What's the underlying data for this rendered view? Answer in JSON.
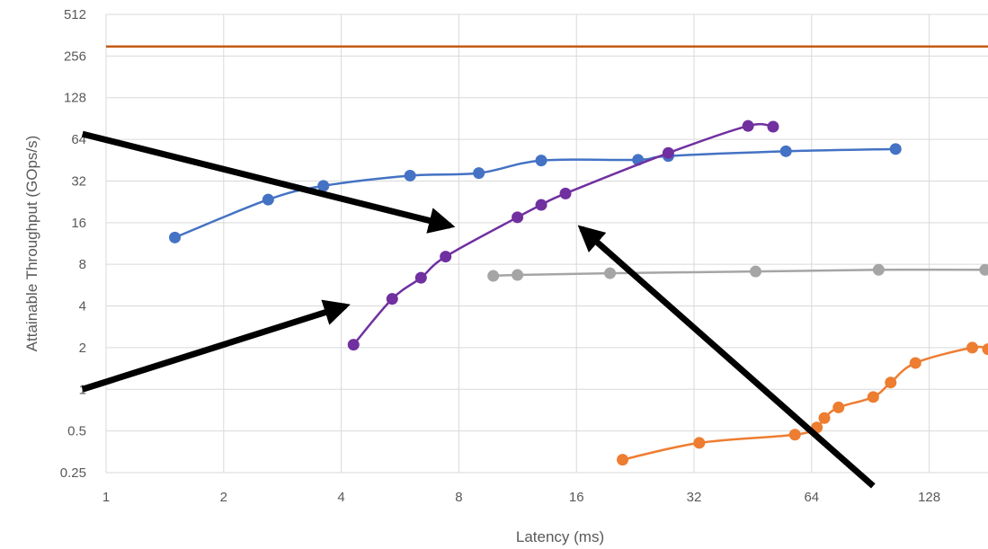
{
  "chart_data": {
    "type": "line",
    "xlabel": "Latency (ms)",
    "ylabel": "Attainable Throughput (GOps/s)",
    "xscale": "log2",
    "yscale": "log2",
    "xlim": [
      1,
      181
    ],
    "ylim": [
      0.25,
      512
    ],
    "xticks": [
      1,
      2,
      4,
      8,
      16,
      32,
      64,
      128
    ],
    "xtick_labels": [
      "1",
      "2",
      "4",
      "8",
      "16",
      "32",
      "64",
      "128"
    ],
    "yticks": [
      0.25,
      0.5,
      1,
      2,
      4,
      8,
      16,
      32,
      64,
      128,
      256,
      512
    ],
    "ytick_labels": [
      "0.25",
      "0.5",
      "1",
      "2",
      "4",
      "8",
      "16",
      "32",
      "64",
      "128",
      "256",
      "512"
    ],
    "grid": true,
    "legend": "none",
    "series": [
      {
        "color": "#c55a11",
        "markers": false,
        "x": [
          1,
          181
        ],
        "y": [
          300,
          300
        ]
      },
      {
        "color": "#4472c4",
        "markers": true,
        "x": [
          1.5,
          2.6,
          3.6,
          6.0,
          9.0,
          13.0,
          23.0,
          27.5,
          55.0,
          105.0
        ],
        "y": [
          12.5,
          23.5,
          29.5,
          35.0,
          36.5,
          45.0,
          45.5,
          48.5,
          52.5,
          54.5
        ]
      },
      {
        "color": "#7030a0",
        "markers": true,
        "x": [
          4.3,
          5.4,
          6.4,
          7.4,
          11.3,
          13.0,
          15.0,
          27.5,
          44.0,
          51.0
        ],
        "y": [
          2.1,
          4.5,
          6.4,
          9.1,
          17.5,
          21.5,
          26.0,
          51.0,
          80.0,
          79.0
        ]
      },
      {
        "color": "#a5a5a5",
        "markers": true,
        "x": [
          9.8,
          11.3,
          19.5,
          46.0,
          95.0,
          178.0
        ],
        "y": [
          6.6,
          6.7,
          6.9,
          7.1,
          7.3,
          7.3
        ]
      },
      {
        "color": "#ed7d31",
        "markers": true,
        "x": [
          21.0,
          33.0,
          58.0,
          66.0,
          69.0,
          75.0,
          92.0,
          102.0,
          118.0,
          165.0,
          181.0
        ],
        "y": [
          0.31,
          0.41,
          0.47,
          0.53,
          0.62,
          0.74,
          0.88,
          1.12,
          1.55,
          2.0,
          1.95
        ]
      }
    ],
    "annotations": [
      {
        "type": "arrow",
        "color": "#000000",
        "from": [
          0.87,
          70
        ],
        "to": [
          7.6,
          15.2
        ]
      },
      {
        "type": "arrow",
        "color": "#000000",
        "from": [
          0.87,
          1.0
        ],
        "to": [
          4.1,
          4.0
        ]
      },
      {
        "type": "arrow",
        "color": "#000000",
        "from": [
          92,
          0.2
        ],
        "to": [
          16.5,
          14.5
        ]
      }
    ]
  }
}
